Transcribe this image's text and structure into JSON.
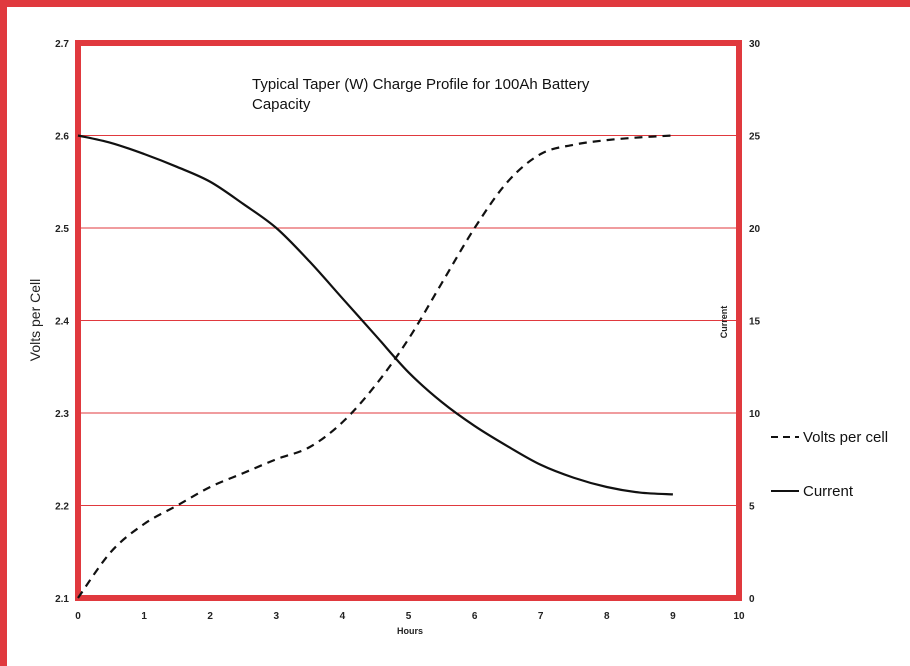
{
  "colors": {
    "frame": "#e0393e",
    "gridline": "#e0393e",
    "line": "#111111"
  },
  "chart_data": {
    "type": "line",
    "title_line1": "Typical Taper (W) Charge Profile for 100Ah Battery",
    "title_line2": "Capacity",
    "xlabel": "Hours",
    "ylabel_left": "Volts per Cell",
    "ylabel_right": "Current",
    "xlim": [
      0,
      10
    ],
    "ylim_left": [
      2.1,
      2.7
    ],
    "ylim_right": [
      0,
      30
    ],
    "x_ticks": [
      "0",
      "1",
      "2",
      "3",
      "4",
      "5",
      "6",
      "7",
      "8",
      "9",
      "10"
    ],
    "y_left_ticks": [
      "2.1",
      "2.2",
      "2.3",
      "2.4",
      "2.5",
      "2.6",
      "2.7"
    ],
    "y_right_ticks": [
      "0",
      "5",
      "10",
      "15",
      "20",
      "25",
      "30"
    ],
    "grid": true,
    "legend_position": "right",
    "series": [
      {
        "name": "Volts per cell",
        "axis": "left",
        "style": "dashed",
        "x": [
          0,
          0.5,
          1,
          1.5,
          2,
          2.5,
          3,
          3.5,
          4,
          4.5,
          5,
          5.5,
          6,
          6.5,
          7,
          7.5,
          8,
          8.5,
          9
        ],
        "y": [
          2.1,
          2.15,
          2.18,
          2.2,
          2.22,
          2.235,
          2.25,
          2.263,
          2.29,
          2.33,
          2.38,
          2.44,
          2.5,
          2.55,
          2.58,
          2.59,
          2.595,
          2.598,
          2.6
        ]
      },
      {
        "name": "Current",
        "axis": "right",
        "style": "solid",
        "x": [
          0,
          0.5,
          1,
          1.5,
          2,
          2.5,
          3,
          3.5,
          4,
          4.5,
          5,
          5.5,
          6,
          6.5,
          7,
          7.5,
          8,
          8.5,
          9
        ],
        "y": [
          25.0,
          24.6,
          24.0,
          23.3,
          22.5,
          21.3,
          20.0,
          18.2,
          16.2,
          14.2,
          12.2,
          10.6,
          9.3,
          8.2,
          7.2,
          6.5,
          6.0,
          5.7,
          5.6
        ]
      }
    ]
  }
}
